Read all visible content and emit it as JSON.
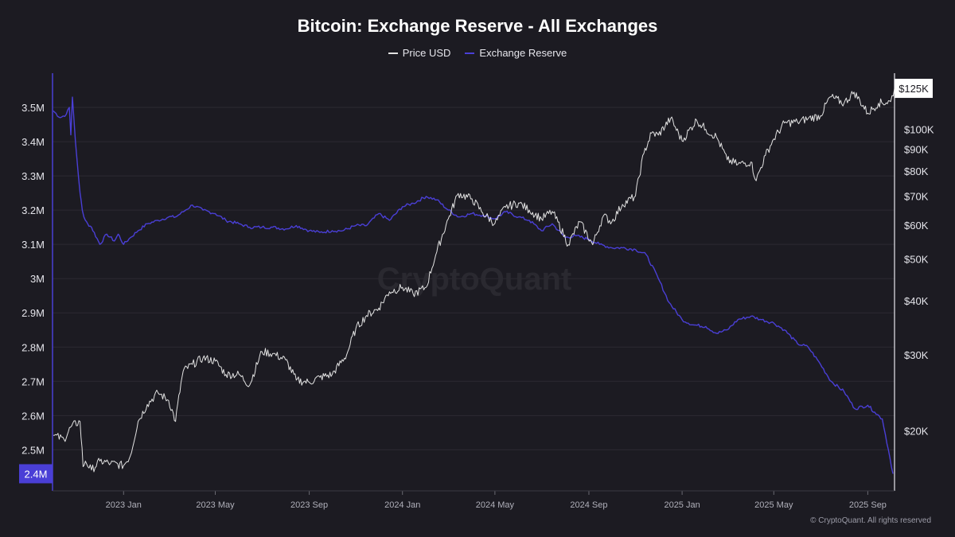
{
  "title": "Bitcoin: Exchange Reserve - All Exchanges",
  "legend": [
    {
      "label": "Price USD",
      "color": "#e2e2e2"
    },
    {
      "label": "Exchange Reserve",
      "color": "#4a3fd6"
    }
  ],
  "watermark": "CryptoQuant",
  "copyright": "© CryptoQuant. All rights reserved",
  "colors": {
    "background": "#1c1b22",
    "reserve": "#4a3fd6",
    "price": "#e2e2e2",
    "grid": "#2c2b33"
  },
  "chart_data": {
    "type": "line",
    "title": "Bitcoin: Exchange Reserve - All Exchanges",
    "grid": true,
    "legend_position": "top-center",
    "x_ticks": [
      "2023 Jan",
      "2023 May",
      "2023 Sep",
      "2024 Jan",
      "2024 May",
      "2024 Sep",
      "2025 Jan",
      "2025 May",
      "2025 Sep"
    ],
    "x_range": [
      "2022-09-30",
      "2025-10-06"
    ],
    "left_axis": {
      "ticks": [
        "2.5M",
        "2.6M",
        "2.7M",
        "2.8M",
        "2.9M",
        "3M",
        "3.1M",
        "3.2M",
        "3.3M",
        "3.4M",
        "3.5M"
      ],
      "tick_values": [
        2500000,
        2600000,
        2700000,
        2800000,
        2900000,
        3000000,
        3100000,
        3200000,
        3300000,
        3400000,
        3500000
      ],
      "range": [
        2380000,
        3600000
      ],
      "current_label": "2.4M"
    },
    "right_axis": {
      "scale": "log",
      "ticks": [
        "$20K",
        "$30K",
        "$40K",
        "$50K",
        "$60K",
        "$70K",
        "$80K",
        "$90K",
        "$100K"
      ],
      "tick_values": [
        20000,
        30000,
        40000,
        50000,
        60000,
        70000,
        80000,
        90000,
        100000
      ],
      "range": [
        14500,
        135000
      ],
      "current_label": "$125K"
    },
    "series": [
      {
        "name": "Exchange Reserve",
        "axis": "left",
        "x": [
          "2022-10-01",
          "2022-10-10",
          "2022-10-18",
          "2022-10-22",
          "2022-10-24",
          "2022-10-26",
          "2022-10-30",
          "2022-11-05",
          "2022-11-08",
          "2022-11-10",
          "2022-11-12",
          "2022-11-15",
          "2022-11-20",
          "2022-12-01",
          "2022-12-10",
          "2022-12-20",
          "2022-12-25",
          "2023-01-01",
          "2023-01-10",
          "2023-01-20",
          "2023-02-01",
          "2023-02-15",
          "2023-03-01",
          "2023-03-10",
          "2023-03-20",
          "2023-04-01",
          "2023-04-15",
          "2023-05-01",
          "2023-05-15",
          "2023-06-01",
          "2023-06-15",
          "2023-07-01",
          "2023-07-15",
          "2023-08-01",
          "2023-08-15",
          "2023-09-01",
          "2023-09-15",
          "2023-10-01",
          "2023-10-15",
          "2023-11-01",
          "2023-11-15",
          "2023-12-01",
          "2023-12-15",
          "2024-01-01",
          "2024-01-15",
          "2024-02-01",
          "2024-02-15",
          "2024-03-01",
          "2024-03-15",
          "2024-04-01",
          "2024-04-15",
          "2024-05-01",
          "2024-05-15",
          "2024-06-01",
          "2024-06-15",
          "2024-07-01",
          "2024-07-15",
          "2024-08-01",
          "2024-08-15",
          "2024-09-01",
          "2024-09-15",
          "2024-10-01",
          "2024-10-15",
          "2024-11-01",
          "2024-11-15",
          "2024-12-01",
          "2024-12-15",
          "2025-01-01",
          "2025-01-15",
          "2025-02-01",
          "2025-02-15",
          "2025-03-01",
          "2025-03-15",
          "2025-04-01",
          "2025-04-15",
          "2025-05-01",
          "2025-05-15",
          "2025-06-01",
          "2025-06-15",
          "2025-07-01",
          "2025-07-15",
          "2025-08-01",
          "2025-08-15",
          "2025-09-01",
          "2025-09-10",
          "2025-09-20",
          "2025-09-28",
          "2025-10-04"
        ],
        "values": [
          3490000,
          3470000,
          3480000,
          3500000,
          3420000,
          3530000,
          3400000,
          3250000,
          3200000,
          3180000,
          3170000,
          3160000,
          3150000,
          3100000,
          3130000,
          3110000,
          3130000,
          3100000,
          3120000,
          3140000,
          3160000,
          3170000,
          3180000,
          3180000,
          3195000,
          3215000,
          3200000,
          3190000,
          3170000,
          3160000,
          3150000,
          3150000,
          3150000,
          3145000,
          3155000,
          3140000,
          3135000,
          3140000,
          3140000,
          3155000,
          3155000,
          3190000,
          3170000,
          3210000,
          3220000,
          3240000,
          3230000,
          3200000,
          3180000,
          3190000,
          3185000,
          3175000,
          3195000,
          3180000,
          3170000,
          3140000,
          3160000,
          3120000,
          3125000,
          3115000,
          3100000,
          3090000,
          3090000,
          3085000,
          3070000,
          3000000,
          2930000,
          2880000,
          2865000,
          2860000,
          2840000,
          2850000,
          2880000,
          2890000,
          2880000,
          2870000,
          2850000,
          2810000,
          2800000,
          2750000,
          2700000,
          2670000,
          2620000,
          2630000,
          2610000,
          2590000,
          2500000,
          2430000
        ]
      },
      {
        "name": "Price USD",
        "axis": "right",
        "x": [
          "2022-10-01",
          "2022-10-15",
          "2022-10-25",
          "2022-11-05",
          "2022-11-09",
          "2022-11-12",
          "2022-11-20",
          "2022-12-01",
          "2022-12-15",
          "2023-01-01",
          "2023-01-10",
          "2023-01-20",
          "2023-02-01",
          "2023-02-15",
          "2023-03-01",
          "2023-03-10",
          "2023-03-20",
          "2023-04-01",
          "2023-04-15",
          "2023-05-01",
          "2023-05-15",
          "2023-06-01",
          "2023-06-15",
          "2023-07-01",
          "2023-07-15",
          "2023-08-01",
          "2023-08-15",
          "2023-08-25",
          "2023-09-01",
          "2023-09-15",
          "2023-10-01",
          "2023-10-20",
          "2023-11-01",
          "2023-11-15",
          "2023-12-01",
          "2023-12-15",
          "2024-01-01",
          "2024-01-15",
          "2024-02-01",
          "2024-02-15",
          "2024-03-01",
          "2024-03-14",
          "2024-04-01",
          "2024-04-15",
          "2024-05-01",
          "2024-05-15",
          "2024-06-01",
          "2024-06-15",
          "2024-07-01",
          "2024-07-15",
          "2024-08-05",
          "2024-08-20",
          "2024-09-06",
          "2024-09-20",
          "2024-10-01",
          "2024-10-15",
          "2024-11-01",
          "2024-11-12",
          "2024-11-22",
          "2024-12-01",
          "2024-12-17",
          "2025-01-01",
          "2025-01-20",
          "2025-02-01",
          "2025-02-15",
          "2025-03-01",
          "2025-03-15",
          "2025-04-01",
          "2025-04-08",
          "2025-04-20",
          "2025-05-01",
          "2025-05-15",
          "2025-06-01",
          "2025-06-15",
          "2025-07-01",
          "2025-07-14",
          "2025-08-01",
          "2025-08-14",
          "2025-09-01",
          "2025-09-15",
          "2025-10-01",
          "2025-10-06"
        ],
        "values": [
          19500,
          19100,
          20500,
          21000,
          16500,
          17000,
          16200,
          17000,
          16800,
          16600,
          17500,
          21000,
          23000,
          24500,
          23500,
          21000,
          27500,
          28500,
          29500,
          29000,
          27000,
          27000,
          25500,
          30500,
          30200,
          29200,
          26200,
          26000,
          25900,
          26600,
          27000,
          30000,
          34500,
          37000,
          38500,
          42000,
          43000,
          41500,
          43000,
          52000,
          62000,
          71000,
          69000,
          64000,
          60500,
          66000,
          67500,
          65000,
          62000,
          64500,
          54000,
          61000,
          54000,
          63000,
          61000,
          67000,
          70000,
          88000,
          98000,
          97000,
          106000,
          94000,
          105000,
          100000,
          96000,
          85000,
          83000,
          84000,
          76000,
          87000,
          95000,
          103500,
          104000,
          106000,
          107500,
          119000,
          115000,
          122000,
          109000,
          115000,
          116000,
          124500
        ]
      }
    ]
  }
}
